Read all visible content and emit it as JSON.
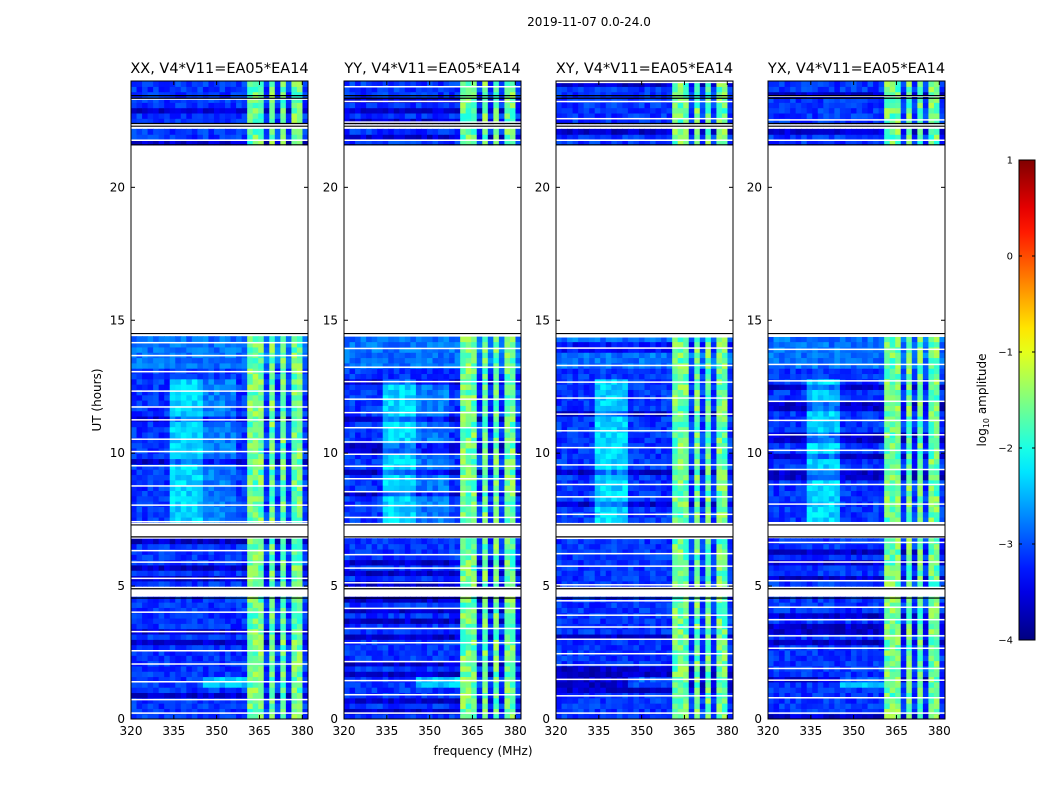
{
  "suptitle": "2019-11-07 0.0-24.0",
  "chart_data": {
    "type": "heatmap",
    "xlabel": "frequency (MHz)",
    "ylabel": "UT (hours)",
    "xlim": [
      320,
      382
    ],
    "ylim": [
      0,
      24
    ],
    "xticks": [
      320,
      335,
      350,
      365,
      380
    ],
    "yticks": [
      0,
      5,
      10,
      15,
      20
    ],
    "panels": [
      {
        "title": "XX, V4*V11=EA05*EA14",
        "pol": "XX"
      },
      {
        "title": "YY, V4*V11=EA05*EA14",
        "pol": "YY"
      },
      {
        "title": "XY, V4*V11=EA05*EA14",
        "pol": "XY"
      },
      {
        "title": "YX, V4*V11=EA05*EA14",
        "pol": "YX"
      }
    ],
    "colorbar": {
      "label": "log",
      "label_sub": "10",
      "label_rest": " amplitude",
      "range": [
        -4,
        1
      ],
      "ticks": [
        1,
        0,
        -1,
        -2,
        -3,
        -4
      ],
      "tick_labels": [
        "1",
        "0",
        "−1",
        "−2",
        "−3",
        "−4"
      ],
      "colormap": "jet"
    },
    "no_data_hours": [
      [
        4.55,
        4.9
      ],
      [
        6.85,
        7.3
      ],
      [
        14.5,
        21.6
      ],
      [
        22.3,
        22.4
      ],
      [
        23.35,
        23.45
      ]
    ],
    "rfi_bands_mhz": [
      [
        361,
        366
      ],
      [
        368,
        371
      ],
      [
        373,
        375
      ],
      [
        376,
        380
      ]
    ]
  }
}
